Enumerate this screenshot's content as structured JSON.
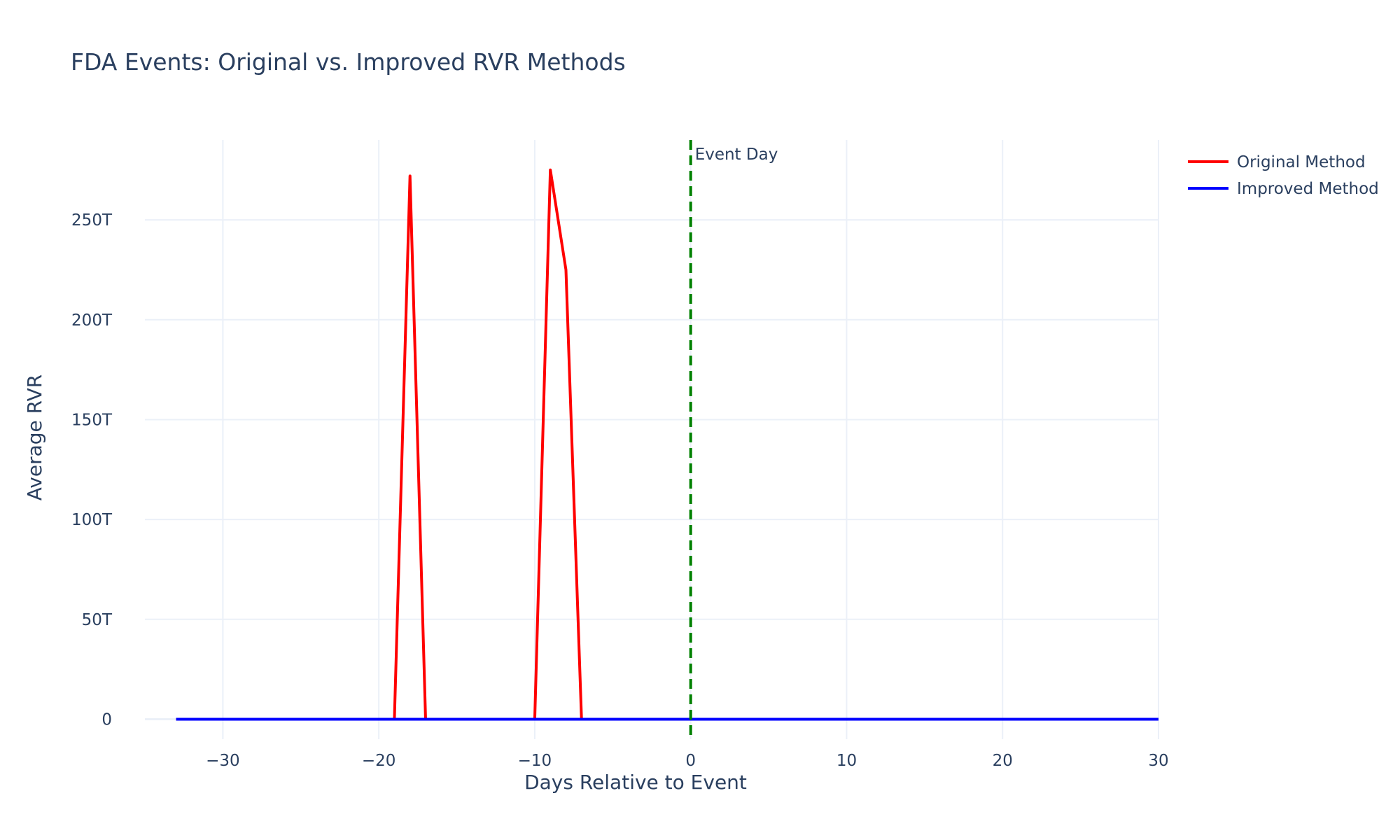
{
  "chart_data": {
    "type": "line",
    "title": "FDA Events: Original vs. Improved RVR Methods",
    "xlabel": "Days Relative to Event",
    "ylabel": "Average RVR",
    "xlim": [
      -35,
      30
    ],
    "ylim": [
      -10,
      290
    ],
    "x_ticks": [
      -30,
      -20,
      -10,
      0,
      10,
      20,
      30
    ],
    "x_tick_labels": [
      "−30",
      "−20",
      "−10",
      "0",
      "10",
      "20",
      "30"
    ],
    "y_ticks": [
      0,
      50,
      100,
      150,
      200,
      250
    ],
    "y_tick_labels": [
      "0",
      "50T",
      "100T",
      "150T",
      "200T",
      "250T"
    ],
    "y_unit": "T (trillions)",
    "grid": true,
    "legend_position": "top-right, outside plot",
    "series": [
      {
        "name": "Original Method",
        "color": "#ff0000",
        "x": [
          -33,
          -32,
          -31,
          -30,
          -29,
          -28,
          -27,
          -26,
          -25,
          -24,
          -23,
          -22,
          -21,
          -20,
          -19,
          -18,
          -17,
          -16,
          -15,
          -14,
          -13,
          -12,
          -11,
          -10,
          -9,
          -8,
          -7,
          -6,
          -5,
          -4,
          -3,
          -2,
          -1,
          0,
          1,
          2,
          3,
          4,
          5,
          6,
          7,
          8,
          9,
          10,
          11,
          12,
          13,
          14,
          15,
          16,
          17,
          18,
          19,
          20,
          21,
          22,
          23,
          24,
          25,
          26,
          27,
          28,
          29,
          30
        ],
        "values": [
          0,
          0,
          0,
          0,
          0,
          0,
          0,
          0,
          0,
          0,
          0,
          0,
          0,
          0,
          0,
          272,
          0,
          0,
          0,
          0,
          0,
          0,
          0,
          0,
          275,
          225,
          0,
          0,
          0,
          0,
          0,
          0,
          0,
          0,
          0,
          0,
          0,
          0,
          0,
          0,
          0,
          0,
          0,
          0,
          0,
          0,
          0,
          0,
          0,
          0,
          0,
          0,
          0,
          0,
          0,
          0,
          0,
          0,
          0,
          0,
          0,
          0,
          0,
          0
        ]
      },
      {
        "name": "Improved Method",
        "color": "#0000ff",
        "x": [
          -33,
          -32,
          -31,
          -30,
          -29,
          -28,
          -27,
          -26,
          -25,
          -24,
          -23,
          -22,
          -21,
          -20,
          -19,
          -18,
          -17,
          -16,
          -15,
          -14,
          -13,
          -12,
          -11,
          -10,
          -9,
          -8,
          -7,
          -6,
          -5,
          -4,
          -3,
          -2,
          -1,
          0,
          1,
          2,
          3,
          4,
          5,
          6,
          7,
          8,
          9,
          10,
          11,
          12,
          13,
          14,
          15,
          16,
          17,
          18,
          19,
          20,
          21,
          22,
          23,
          24,
          25,
          26,
          27,
          28,
          29,
          30
        ],
        "values": [
          0,
          0,
          0,
          0,
          0,
          0,
          0,
          0,
          0,
          0,
          0,
          0,
          0,
          0,
          0,
          0,
          0,
          0,
          0,
          0,
          0,
          0,
          0,
          0,
          0,
          0,
          0,
          0,
          0,
          0,
          0,
          0,
          0,
          0,
          0,
          0,
          0,
          0,
          0,
          0,
          0,
          0,
          0,
          0,
          0,
          0,
          0,
          0,
          0,
          0,
          0,
          0,
          0,
          0,
          0,
          0,
          0,
          0,
          0,
          0,
          0,
          0,
          0,
          0
        ]
      }
    ],
    "annotations": [
      {
        "x": 0,
        "text": "Event Day",
        "style": "vertical dashed line",
        "color": "#008000"
      }
    ]
  }
}
